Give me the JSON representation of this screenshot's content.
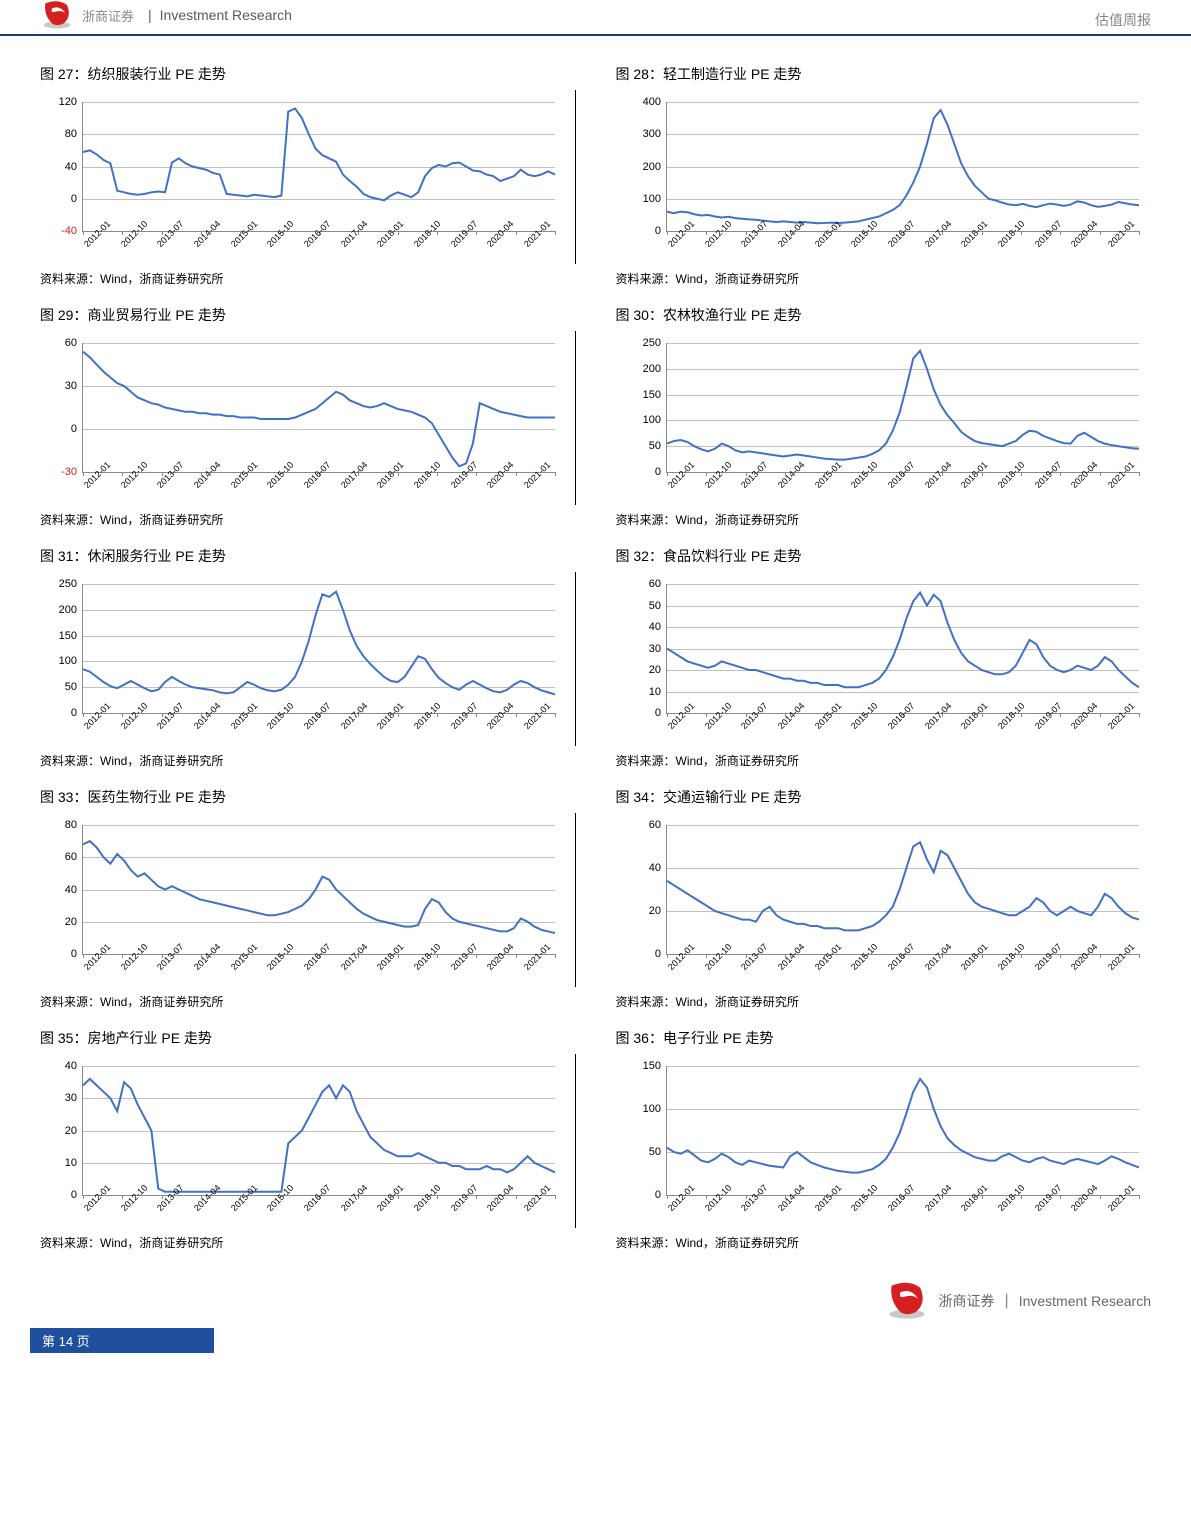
{
  "header": {
    "cn_brand": "浙商证券",
    "en_brand": "Investment Research",
    "right": "估值周报"
  },
  "footer": {
    "cn": "浙商证券",
    "en": "Investment Research",
    "page_label": "第 14 页"
  },
  "colors": {
    "line": "#4171c4",
    "grid": "#bfbfbf",
    "axis": "#888888",
    "accent_rule": "#1f3a6e",
    "ylabel_normal": "#000000",
    "ylabel_neg": "#d02020",
    "title": "#000000",
    "footer_bar": "#1f4e9c"
  },
  "xlabels": [
    "2012-01",
    "2012-10",
    "2013-07",
    "2014-04",
    "2015-01",
    "2015-10",
    "2016-07",
    "2017-04",
    "2018-01",
    "2018-10",
    "2019-07",
    "2020-04",
    "2021-01"
  ],
  "source": "资料来源：Wind，浙商证券研究所",
  "charts": [
    {
      "row": 0,
      "col": 0,
      "title": "图 27：纺织服装行业 PE 走势",
      "ymin": -40,
      "ymax": 120,
      "ystep": 40,
      "data": [
        58,
        60,
        55,
        48,
        44,
        10,
        8,
        6,
        5,
        6,
        8,
        9,
        8,
        45,
        50,
        44,
        40,
        38,
        36,
        32,
        30,
        6,
        5,
        4,
        3,
        5,
        4,
        3,
        2,
        4,
        108,
        112,
        100,
        80,
        62,
        54,
        50,
        46,
        30,
        22,
        15,
        6,
        2,
        0,
        -2,
        4,
        8,
        5,
        2,
        8,
        28,
        38,
        42,
        40,
        44,
        45,
        40,
        35,
        34,
        30,
        28,
        22,
        25,
        28,
        36,
        30,
        28,
        30,
        34,
        30
      ]
    },
    {
      "row": 0,
      "col": 1,
      "title": "图 28：轻工制造行业 PE 走势",
      "ymin": 0,
      "ymax": 400,
      "ystep": 100,
      "data": [
        60,
        55,
        60,
        58,
        52,
        48,
        50,
        45,
        42,
        44,
        40,
        38,
        36,
        35,
        32,
        30,
        28,
        30,
        28,
        26,
        28,
        26,
        24,
        25,
        26,
        25,
        26,
        28,
        30,
        35,
        40,
        45,
        55,
        65,
        80,
        110,
        150,
        200,
        270,
        350,
        375,
        330,
        270,
        210,
        170,
        140,
        120,
        100,
        95,
        88,
        82,
        80,
        84,
        78,
        74,
        80,
        85,
        82,
        78,
        82,
        92,
        88,
        80,
        75,
        78,
        82,
        90,
        86,
        82,
        80
      ]
    },
    {
      "row": 1,
      "col": 0,
      "title": "图 29：商业贸易行业 PE 走势",
      "ymin": -30,
      "ymax": 60,
      "ystep": 30,
      "data": [
        54,
        50,
        45,
        40,
        36,
        32,
        30,
        26,
        22,
        20,
        18,
        17,
        15,
        14,
        13,
        12,
        12,
        11,
        11,
        10,
        10,
        9,
        9,
        8,
        8,
        8,
        7,
        7,
        7,
        7,
        7,
        8,
        10,
        12,
        14,
        18,
        22,
        26,
        24,
        20,
        18,
        16,
        15,
        16,
        18,
        16,
        14,
        13,
        12,
        10,
        8,
        4,
        -4,
        -12,
        -20,
        -26,
        -24,
        -10,
        18,
        16,
        14,
        12,
        11,
        10,
        9,
        8,
        8,
        8,
        8,
        8
      ]
    },
    {
      "row": 1,
      "col": 1,
      "title": "图 30：农林牧渔行业 PE 走势",
      "ymin": 0,
      "ymax": 250,
      "ystep": 50,
      "data": [
        55,
        60,
        62,
        58,
        50,
        44,
        40,
        45,
        55,
        50,
        42,
        38,
        40,
        38,
        36,
        34,
        32,
        30,
        32,
        34,
        32,
        30,
        28,
        26,
        25,
        24,
        24,
        26,
        28,
        30,
        35,
        42,
        55,
        80,
        115,
        165,
        220,
        235,
        200,
        160,
        130,
        110,
        95,
        78,
        68,
        60,
        56,
        54,
        52,
        50,
        55,
        60,
        72,
        80,
        78,
        70,
        65,
        60,
        56,
        55,
        70,
        76,
        68,
        60,
        55,
        52,
        50,
        48,
        46,
        45
      ]
    },
    {
      "row": 2,
      "col": 0,
      "title": "图 31：休闲服务行业 PE 走势",
      "ymin": 0,
      "ymax": 250,
      "ystep": 50,
      "data": [
        85,
        80,
        70,
        60,
        52,
        48,
        55,
        62,
        55,
        48,
        42,
        45,
        60,
        70,
        62,
        55,
        50,
        48,
        46,
        44,
        40,
        38,
        40,
        50,
        60,
        55,
        48,
        44,
        42,
        45,
        55,
        70,
        100,
        140,
        190,
        230,
        225,
        235,
        200,
        160,
        130,
        110,
        95,
        82,
        70,
        62,
        60,
        70,
        90,
        110,
        105,
        85,
        68,
        58,
        50,
        45,
        55,
        62,
        55,
        48,
        42,
        40,
        45,
        55,
        62,
        58,
        50,
        44,
        40,
        36
      ]
    },
    {
      "row": 2,
      "col": 1,
      "title": "图 32：食品饮料行业 PE 走势",
      "ymin": 0,
      "ymax": 60,
      "ystep": 10,
      "data": [
        30,
        28,
        26,
        24,
        23,
        22,
        21,
        22,
        24,
        23,
        22,
        21,
        20,
        20,
        19,
        18,
        17,
        16,
        16,
        15,
        15,
        14,
        14,
        13,
        13,
        13,
        12,
        12,
        12,
        13,
        14,
        16,
        20,
        26,
        34,
        44,
        52,
        56,
        50,
        55,
        52,
        42,
        34,
        28,
        24,
        22,
        20,
        19,
        18,
        18,
        19,
        22,
        28,
        34,
        32,
        26,
        22,
        20,
        19,
        20,
        22,
        21,
        20,
        22,
        26,
        24,
        20,
        17,
        14,
        12
      ]
    },
    {
      "row": 3,
      "col": 0,
      "title": "图 33：医药生物行业 PE 走势",
      "ymin": 0,
      "ymax": 80,
      "ystep": 20,
      "data": [
        68,
        70,
        66,
        60,
        56,
        62,
        58,
        52,
        48,
        50,
        46,
        42,
        40,
        42,
        40,
        38,
        36,
        34,
        33,
        32,
        31,
        30,
        29,
        28,
        27,
        26,
        25,
        24,
        24,
        25,
        26,
        28,
        30,
        34,
        40,
        48,
        46,
        40,
        36,
        32,
        28,
        25,
        23,
        21,
        20,
        19,
        18,
        17,
        17,
        18,
        28,
        34,
        32,
        26,
        22,
        20,
        19,
        18,
        17,
        16,
        15,
        14,
        14,
        16,
        22,
        20,
        17,
        15,
        14,
        13
      ]
    },
    {
      "row": 3,
      "col": 1,
      "title": "图 34：交通运输行业 PE 走势",
      "ymin": 0,
      "ymax": 60,
      "ystep": 20,
      "data": [
        34,
        32,
        30,
        28,
        26,
        24,
        22,
        20,
        19,
        18,
        17,
        16,
        16,
        15,
        20,
        22,
        18,
        16,
        15,
        14,
        14,
        13,
        13,
        12,
        12,
        12,
        11,
        11,
        11,
        12,
        13,
        15,
        18,
        22,
        30,
        40,
        50,
        52,
        44,
        38,
        48,
        46,
        40,
        34,
        28,
        24,
        22,
        21,
        20,
        19,
        18,
        18,
        20,
        22,
        26,
        24,
        20,
        18,
        20,
        22,
        20,
        19,
        18,
        22,
        28,
        26,
        22,
        19,
        17,
        16
      ]
    },
    {
      "row": 4,
      "col": 0,
      "title": "图 35：房地产行业 PE 走势",
      "ymin": 0,
      "ymax": 40,
      "ystep": 10,
      "data": [
        34,
        36,
        34,
        32,
        30,
        26,
        35,
        33,
        28,
        24,
        20,
        2,
        1,
        1,
        1,
        1,
        1,
        1,
        1,
        1,
        1,
        1,
        1,
        1,
        1,
        1,
        1,
        1,
        1,
        1,
        16,
        18,
        20,
        24,
        28,
        32,
        34,
        30,
        34,
        32,
        26,
        22,
        18,
        16,
        14,
        13,
        12,
        12,
        12,
        13,
        12,
        11,
        10,
        10,
        9,
        9,
        8,
        8,
        8,
        9,
        8,
        8,
        7,
        8,
        10,
        12,
        10,
        9,
        8,
        7
      ]
    },
    {
      "row": 4,
      "col": 1,
      "title": "图 36：电子行业 PE 走势",
      "ymin": 0,
      "ymax": 150,
      "ystep": 50,
      "data": [
        55,
        50,
        48,
        52,
        46,
        40,
        38,
        42,
        48,
        44,
        38,
        35,
        40,
        38,
        36,
        34,
        33,
        32,
        45,
        50,
        44,
        38,
        35,
        32,
        30,
        28,
        27,
        26,
        26,
        28,
        30,
        35,
        42,
        55,
        72,
        95,
        120,
        135,
        125,
        100,
        80,
        66,
        58,
        52,
        48,
        44,
        42,
        40,
        40,
        45,
        48,
        44,
        40,
        38,
        42,
        44,
        40,
        38,
        36,
        40,
        42,
        40,
        38,
        36,
        40,
        45,
        42,
        38,
        35,
        32
      ]
    }
  ]
}
